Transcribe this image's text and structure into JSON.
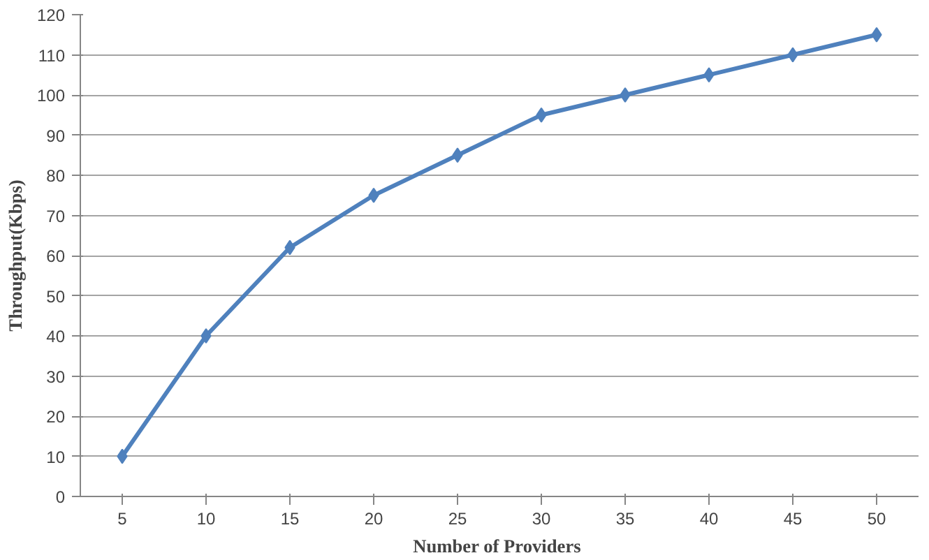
{
  "chart_data": {
    "type": "line",
    "xlabel": "Number  of Providers",
    "ylabel": "Throughput(Kbps)",
    "categories": [
      "5",
      "10",
      "15",
      "20",
      "25",
      "30",
      "35",
      "40",
      "45",
      "50"
    ],
    "series": [
      {
        "color": "#4f81bd",
        "values": [
          10,
          40,
          62,
          75,
          85,
          95,
          100,
          105,
          110,
          115
        ]
      }
    ],
    "ylim": [
      0,
      120
    ],
    "yticks": [
      0,
      10,
      20,
      30,
      40,
      50,
      60,
      70,
      80,
      90,
      100,
      110,
      120
    ],
    "grid": "y",
    "marker": "diamond",
    "line_style": "solid"
  }
}
